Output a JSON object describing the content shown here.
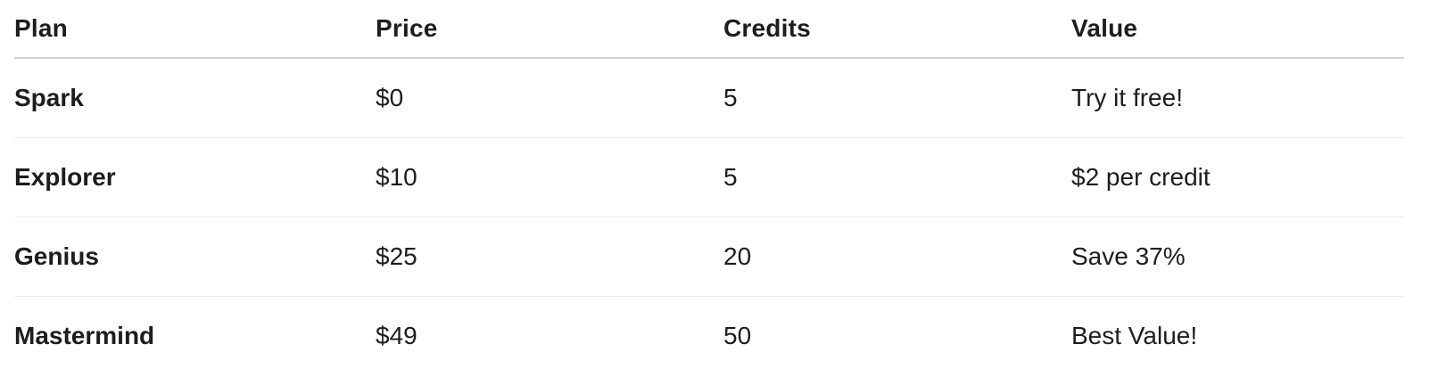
{
  "table": {
    "headers": [
      "Plan",
      "Price",
      "Credits",
      "Value"
    ],
    "rows": [
      {
        "plan": "Spark",
        "price": "$0",
        "credits": "5",
        "value": "Try it free!"
      },
      {
        "plan": "Explorer",
        "price": "$10",
        "credits": "5",
        "value": "$2 per credit"
      },
      {
        "plan": "Genius",
        "price": "$25",
        "credits": "20",
        "value": "Save 37%"
      },
      {
        "plan": "Mastermind",
        "price": "$49",
        "credits": "50",
        "value": "Best Value!"
      }
    ]
  },
  "colors": {
    "text": "#1d1d1f",
    "header_rule": "#d2d2d7",
    "row_rule": "#ececec",
    "background": "#ffffff"
  }
}
